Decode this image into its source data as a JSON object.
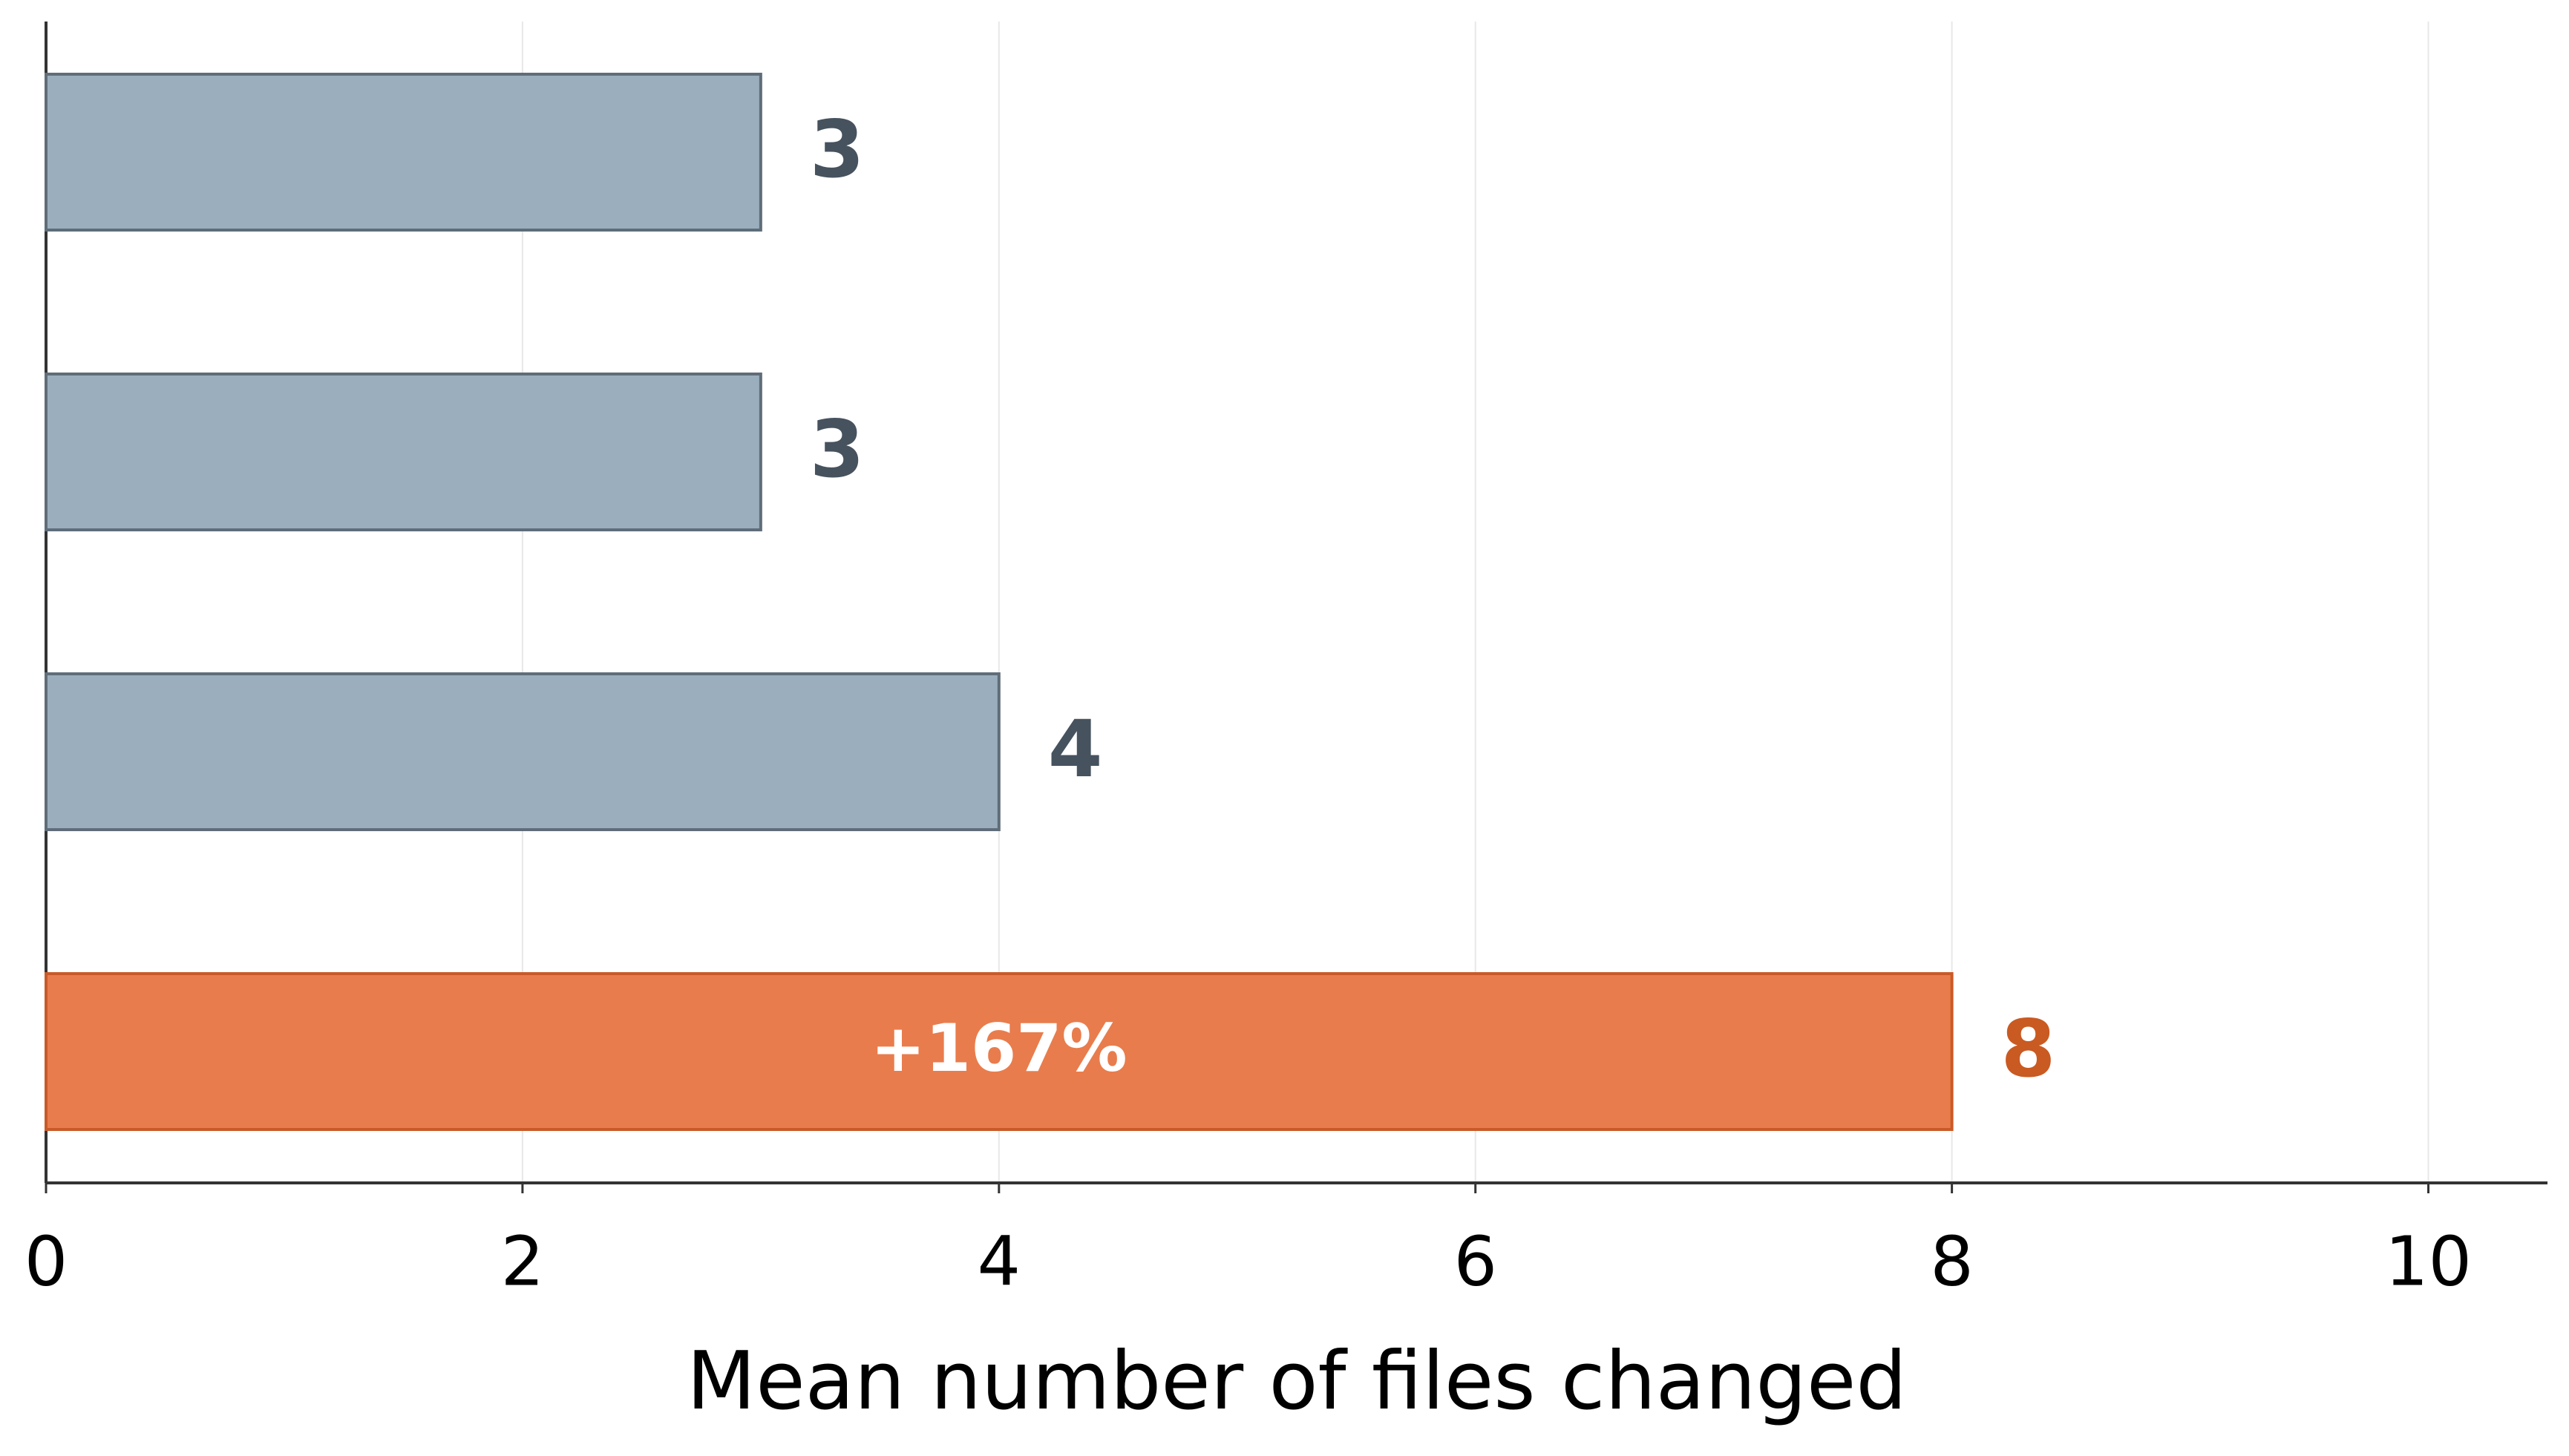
{
  "chart_data": {
    "type": "barh",
    "x_label": "Mean number of files changed",
    "categories": [
      null,
      null,
      null,
      null
    ],
    "values": [
      3,
      3,
      4,
      8
    ],
    "colors": [
      "#9baebe",
      "#9baebe",
      "#9baebe",
      "#e97c4c"
    ],
    "edge_colors": [
      "#5f6d79",
      "#5f6d79",
      "#5f6d79",
      "#c95a27"
    ],
    "label_colors": [
      "#46525e",
      "#46525e",
      "#46525e",
      "#c95a22"
    ],
    "annotation": "+167%",
    "xlim": [
      0,
      10.5
    ],
    "xticks": [
      0,
      2,
      4,
      6,
      8,
      10
    ],
    "grid": true
  }
}
